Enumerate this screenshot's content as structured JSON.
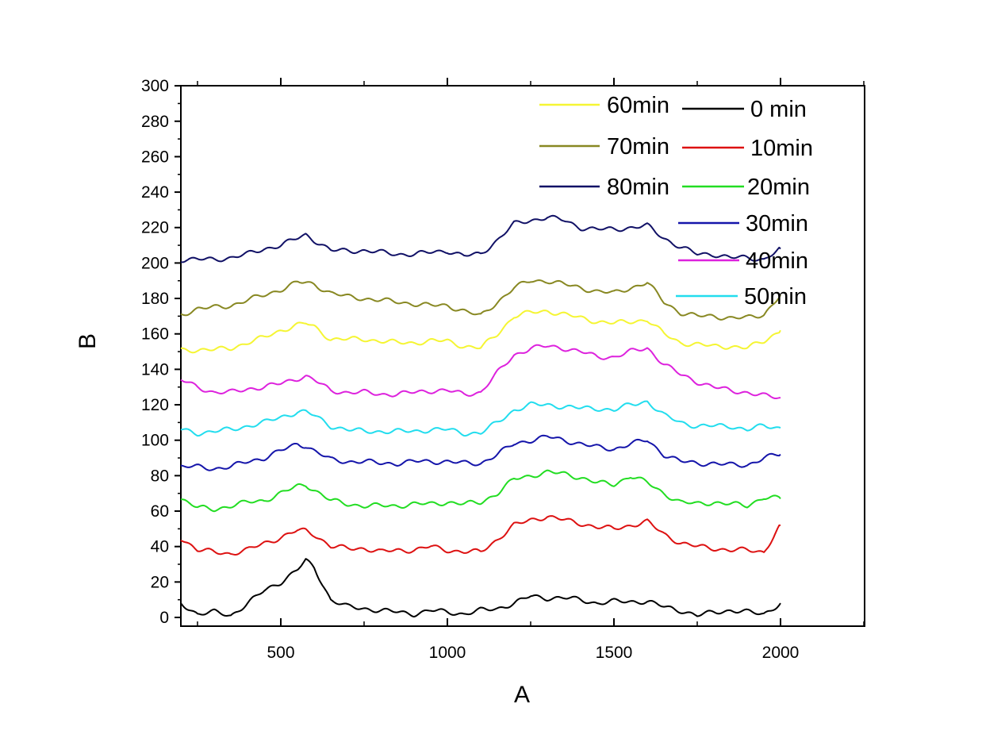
{
  "chart_data": {
    "type": "line",
    "title": "",
    "xlabel": "A",
    "ylabel": "B",
    "xlim": [
      200,
      2250
    ],
    "ylim": [
      0,
      300
    ],
    "xticks": [
      500,
      1000,
      1500,
      2000
    ],
    "yticks": [
      0,
      20,
      40,
      60,
      80,
      100,
      120,
      140,
      160,
      180,
      200,
      220,
      240,
      260,
      280,
      300
    ],
    "grid": false,
    "legend": "top-right",
    "series": [
      {
        "name": "0 min",
        "color": "#000000",
        "x": [
          200,
          250,
          300,
          350,
          400,
          450,
          500,
          550,
          575,
          600,
          650,
          700,
          750,
          800,
          850,
          900,
          950,
          1000,
          1050,
          1100,
          1150,
          1200,
          1250,
          1300,
          1350,
          1400,
          1450,
          1500,
          1550,
          1600,
          1650,
          1700,
          1750,
          1800,
          1850,
          1900,
          1950,
          2000
        ],
        "y": [
          8,
          2,
          3,
          1,
          8,
          15,
          20,
          27,
          32,
          28,
          10,
          6,
          5,
          4,
          3,
          2,
          4,
          3,
          2,
          4,
          5,
          8,
          12,
          11,
          11,
          10,
          8,
          9,
          9,
          9,
          6,
          4,
          1,
          3,
          4,
          3,
          2,
          8
        ]
      },
      {
        "name": "10min",
        "color": "#dd1111",
        "x": [
          200,
          250,
          300,
          350,
          400,
          450,
          500,
          550,
          575,
          600,
          650,
          700,
          750,
          800,
          850,
          900,
          950,
          1000,
          1050,
          1100,
          1150,
          1200,
          1250,
          1300,
          1350,
          1400,
          1450,
          1500,
          1550,
          1600,
          1650,
          1700,
          1750,
          1800,
          1850,
          1900,
          1950,
          2000
        ],
        "y": [
          45,
          38,
          37,
          36,
          38,
          42,
          45,
          49,
          49,
          47,
          40,
          39,
          39,
          37,
          38,
          38,
          40,
          38,
          37,
          37,
          44,
          52,
          55,
          57,
          55,
          53,
          51,
          50,
          52,
          54,
          47,
          42,
          40,
          39,
          38,
          38,
          37,
          52
        ]
      },
      {
        "name": "20min",
        "color": "#22dd22",
        "x": [
          200,
          250,
          300,
          350,
          400,
          450,
          500,
          550,
          575,
          600,
          650,
          700,
          750,
          800,
          850,
          900,
          950,
          1000,
          1050,
          1100,
          1150,
          1200,
          1250,
          1300,
          1350,
          1400,
          1450,
          1500,
          1550,
          1600,
          1650,
          1700,
          1750,
          1800,
          1850,
          1900,
          1950,
          2000
        ],
        "y": [
          67,
          62,
          61,
          63,
          65,
          66,
          70,
          74,
          75,
          72,
          66,
          64,
          63,
          63,
          63,
          64,
          64,
          65,
          64,
          65,
          70,
          78,
          80,
          82,
          81,
          79,
          76,
          75,
          80,
          76,
          70,
          65,
          64,
          65,
          64,
          63,
          68,
          67
        ]
      },
      {
        "name": "30min",
        "color": "#1515aa",
        "x": [
          200,
          250,
          300,
          350,
          400,
          450,
          500,
          550,
          575,
          600,
          650,
          700,
          750,
          800,
          850,
          900,
          950,
          1000,
          1050,
          1100,
          1150,
          1200,
          1250,
          1300,
          1350,
          1400,
          1450,
          1500,
          1550,
          1600,
          1650,
          1700,
          1750,
          1800,
          1850,
          1900,
          1950,
          2000
        ],
        "y": [
          85,
          85,
          84,
          85,
          88,
          90,
          94,
          98,
          97,
          94,
          89,
          88,
          88,
          87,
          87,
          88,
          88,
          88,
          87,
          87,
          92,
          98,
          100,
          102,
          100,
          98,
          96,
          95,
          98,
          100,
          92,
          88,
          87,
          87,
          86,
          86,
          90,
          92
        ]
      },
      {
        "name": "40min",
        "color": "#dd22dd",
        "x": [
          200,
          250,
          300,
          350,
          400,
          450,
          500,
          550,
          575,
          600,
          650,
          700,
          750,
          800,
          850,
          900,
          950,
          1000,
          1050,
          1100,
          1150,
          1200,
          1250,
          1300,
          1350,
          1400,
          1450,
          1500,
          1550,
          1600,
          1650,
          1700,
          1750,
          1800,
          1850,
          1900,
          1950,
          2000
        ],
        "y": [
          134,
          130,
          127,
          127,
          129,
          130,
          132,
          135,
          136,
          134,
          128,
          127,
          127,
          126,
          126,
          127,
          128,
          128,
          126,
          127,
          138,
          148,
          152,
          153,
          152,
          150,
          147,
          147,
          150,
          152,
          143,
          137,
          133,
          130,
          128,
          127,
          125,
          124
        ]
      },
      {
        "name": "50min",
        "color": "#22ddee",
        "x": [
          200,
          250,
          300,
          350,
          400,
          450,
          500,
          550,
          575,
          600,
          650,
          700,
          750,
          800,
          850,
          900,
          950,
          1000,
          1050,
          1100,
          1150,
          1200,
          1250,
          1300,
          1350,
          1400,
          1450,
          1500,
          1550,
          1600,
          1650,
          1700,
          1750,
          1800,
          1850,
          1900,
          1950,
          2000
        ],
        "y": [
          106,
          104,
          105,
          106,
          108,
          110,
          113,
          116,
          116,
          114,
          108,
          106,
          105,
          105,
          105,
          105,
          106,
          106,
          104,
          104,
          110,
          117,
          120,
          120,
          119,
          118,
          118,
          117,
          120,
          122,
          114,
          110,
          108,
          108,
          108,
          106,
          108,
          107
        ]
      },
      {
        "name": "60min",
        "color": "#f5f533",
        "x": [
          200,
          250,
          300,
          350,
          400,
          450,
          500,
          550,
          575,
          600,
          650,
          700,
          750,
          800,
          850,
          900,
          950,
          1000,
          1050,
          1100,
          1150,
          1200,
          1250,
          1300,
          1350,
          1400,
          1450,
          1500,
          1550,
          1600,
          1650,
          1700,
          1750,
          1800,
          1850,
          1900,
          1950,
          2000
        ],
        "y": [
          151,
          151,
          151,
          152,
          155,
          158,
          162,
          165,
          166,
          164,
          157,
          157,
          157,
          156,
          155,
          155,
          156,
          156,
          153,
          152,
          160,
          170,
          172,
          173,
          171,
          169,
          167,
          166,
          167,
          168,
          160,
          155,
          154,
          153,
          153,
          152,
          156,
          162
        ]
      },
      {
        "name": "70min",
        "color": "#888822",
        "x": [
          200,
          250,
          300,
          350,
          400,
          450,
          500,
          550,
          575,
          600,
          650,
          700,
          750,
          800,
          850,
          900,
          950,
          1000,
          1050,
          1100,
          1150,
          1200,
          1250,
          1300,
          1350,
          1400,
          1450,
          1500,
          1550,
          1600,
          1650,
          1700,
          1750,
          1800,
          1850,
          1900,
          1950,
          2000
        ],
        "y": [
          171,
          174,
          175,
          176,
          179,
          182,
          185,
          189,
          189,
          188,
          183,
          181,
          180,
          179,
          178,
          177,
          176,
          176,
          173,
          170,
          178,
          186,
          190,
          190,
          188,
          186,
          184,
          183,
          186,
          189,
          178,
          172,
          170,
          170,
          169,
          169,
          171,
          182
        ]
      },
      {
        "name": "80min",
        "color": "#111166",
        "x": [
          200,
          250,
          300,
          350,
          400,
          450,
          500,
          550,
          575,
          600,
          650,
          700,
          750,
          800,
          850,
          900,
          950,
          1000,
          1050,
          1100,
          1150,
          1200,
          1250,
          1300,
          1350,
          1400,
          1450,
          1500,
          1550,
          1600,
          1650,
          1700,
          1750,
          1800,
          1850,
          1900,
          1950,
          2000
        ],
        "y": [
          202,
          202,
          202,
          203,
          205,
          208,
          210,
          214,
          216,
          213,
          207,
          207,
          207,
          206,
          205,
          205,
          206,
          207,
          204,
          205,
          213,
          222,
          224,
          226,
          224,
          220,
          219,
          219,
          220,
          221,
          214,
          209,
          205,
          205,
          203,
          203,
          202,
          208
        ]
      }
    ]
  }
}
